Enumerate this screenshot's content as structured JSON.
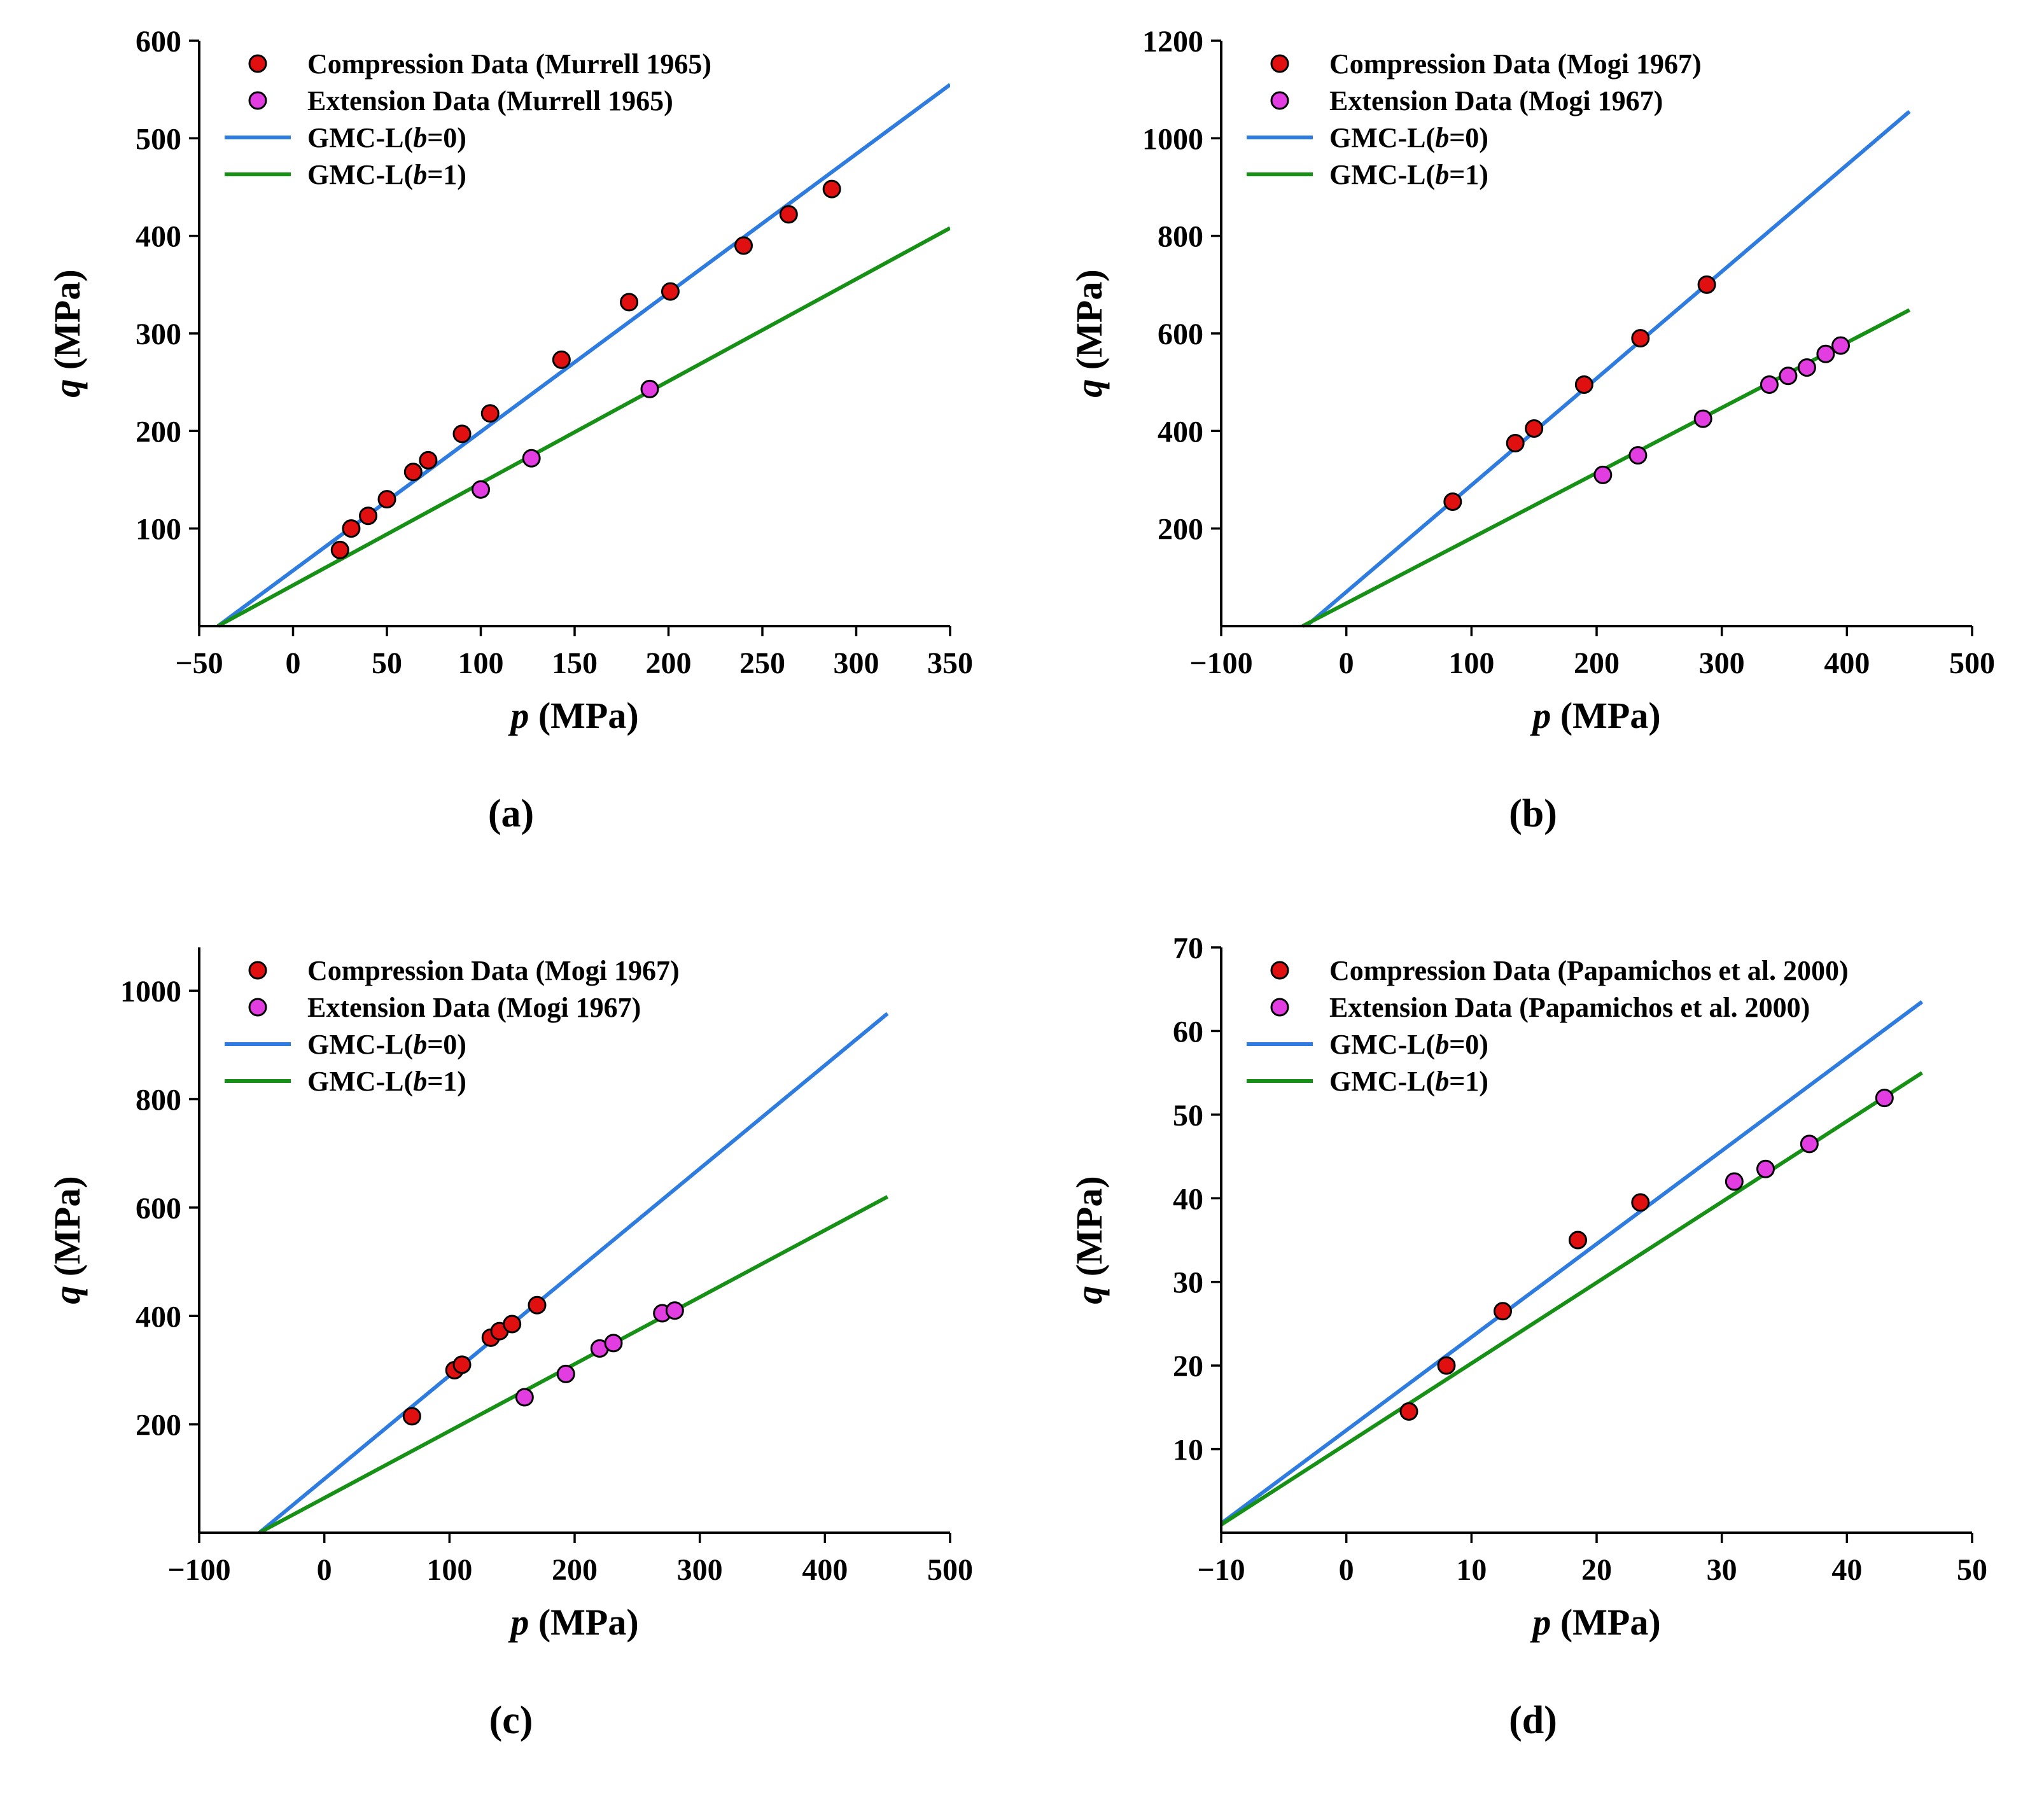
{
  "figure": {
    "background": "#ffffff",
    "axis_color": "#000000"
  },
  "chart_data": [
    {
      "id": "a",
      "type": "scatter",
      "caption": "(a)",
      "xlabel": {
        "var": "p",
        "unit": "(MPa)"
      },
      "ylabel": {
        "var": "q",
        "unit": "(MPa)"
      },
      "xlim": [
        -50,
        350
      ],
      "ylim": [
        0,
        600
      ],
      "xticks": [
        -50,
        0,
        50,
        100,
        150,
        200,
        250,
        300,
        350
      ],
      "yticks": [
        100,
        200,
        300,
        400,
        500,
        600
      ],
      "legend_position": "top-left",
      "grid": false,
      "scatter": [
        {
          "name": "Compression Data (Murrell 1965)",
          "color": "#e01010",
          "points": [
            [
              25,
              78
            ],
            [
              31,
              100
            ],
            [
              40,
              113
            ],
            [
              50,
              130
            ],
            [
              64,
              158
            ],
            [
              72,
              170
            ],
            [
              90,
              197
            ],
            [
              105,
              218
            ],
            [
              143,
              273
            ],
            [
              179,
              332
            ],
            [
              201,
              343
            ],
            [
              240,
              390
            ],
            [
              264,
              422
            ],
            [
              287,
              448
            ]
          ]
        },
        {
          "name": "Extension Data (Murrell 1965)",
          "color": "#e13de1",
          "points": [
            [
              100,
              140
            ],
            [
              127,
              172
            ],
            [
              190,
              243
            ]
          ]
        }
      ],
      "lines": [
        {
          "name": "GMC-L(b=0)",
          "color": "#2f7ce0",
          "points": [
            [
              -40,
              0
            ],
            [
              350,
              555
            ]
          ]
        },
        {
          "name": "GMC-L(b=1)",
          "color": "#169116",
          "points": [
            [
              -40,
              0
            ],
            [
              350,
              408
            ]
          ]
        }
      ]
    },
    {
      "id": "b",
      "type": "scatter",
      "caption": "(b)",
      "xlabel": {
        "var": "p",
        "unit": "(MPa)"
      },
      "ylabel": {
        "var": "q",
        "unit": "(MPa)"
      },
      "xlim": [
        -100,
        500
      ],
      "ylim": [
        0,
        1200
      ],
      "xticks": [
        -100,
        0,
        100,
        200,
        300,
        400,
        500
      ],
      "yticks": [
        200,
        400,
        600,
        800,
        1000,
        1200
      ],
      "legend_position": "top-left",
      "grid": false,
      "scatter": [
        {
          "name": "Compression Data (Mogi 1967)",
          "color": "#e01010",
          "points": [
            [
              85,
              255
            ],
            [
              135,
              375
            ],
            [
              150,
              405
            ],
            [
              190,
              495
            ],
            [
              235,
              590
            ],
            [
              288,
              700
            ]
          ]
        },
        {
          "name": "Extension Data (Mogi 1967)",
          "color": "#e13de1",
          "points": [
            [
              205,
              310
            ],
            [
              233,
              350
            ],
            [
              285,
              425
            ],
            [
              338,
              495
            ],
            [
              353,
              513
            ],
            [
              368,
              530
            ],
            [
              383,
              558
            ],
            [
              395,
              575
            ]
          ]
        }
      ],
      "lines": [
        {
          "name": "GMC-L(b=0)",
          "color": "#2f7ce0",
          "points": [
            [
              -32,
              0
            ],
            [
              450,
              1055
            ]
          ]
        },
        {
          "name": "GMC-L(b=1)",
          "color": "#169116",
          "points": [
            [
              -35,
              0
            ],
            [
              450,
              648
            ]
          ]
        }
      ]
    },
    {
      "id": "c",
      "type": "scatter",
      "caption": "(c)",
      "xlabel": {
        "var": "p",
        "unit": "(MPa)"
      },
      "ylabel": {
        "var": "q",
        "unit": "(MPa)"
      },
      "xlim": [
        -100,
        500
      ],
      "ylim": [
        0,
        1080
      ],
      "xticks": [
        -100,
        0,
        100,
        200,
        300,
        400,
        500
      ],
      "yticks": [
        200,
        400,
        600,
        800,
        1000
      ],
      "legend_position": "top-left",
      "grid": false,
      "scatter": [
        {
          "name": "Compression Data (Mogi 1967)",
          "color": "#e01010",
          "points": [
            [
              70,
              215
            ],
            [
              104,
              300
            ],
            [
              110,
              310
            ],
            [
              133,
              360
            ],
            [
              140,
              372
            ],
            [
              150,
              385
            ],
            [
              170,
              420
            ]
          ]
        },
        {
          "name": "Extension Data (Mogi 1967)",
          "color": "#e13de1",
          "points": [
            [
              160,
              250
            ],
            [
              193,
              293
            ],
            [
              220,
              340
            ],
            [
              231,
              350
            ],
            [
              270,
              405
            ],
            [
              280,
              410
            ]
          ]
        }
      ],
      "lines": [
        {
          "name": "GMC-L(b=0)",
          "color": "#2f7ce0",
          "points": [
            [
              -52,
              0
            ],
            [
              450,
              958
            ]
          ]
        },
        {
          "name": "GMC-L(b=1)",
          "color": "#169116",
          "points": [
            [
              -52,
              0
            ],
            [
              450,
              620
            ]
          ]
        }
      ]
    },
    {
      "id": "d",
      "type": "scatter",
      "caption": "(d)",
      "xlabel": {
        "var": "p",
        "unit": "(MPa)"
      },
      "ylabel": {
        "var": "q",
        "unit": "(MPa)"
      },
      "xlim": [
        -10,
        50
      ],
      "ylim": [
        0,
        70
      ],
      "xticks": [
        -10,
        0,
        10,
        20,
        30,
        40,
        50
      ],
      "yticks": [
        10,
        20,
        30,
        40,
        50,
        60,
        70
      ],
      "legend_position": "top-left",
      "grid": false,
      "scatter": [
        {
          "name": "Compression Data (Papamichos et al. 2000)",
          "color": "#e01010",
          "points": [
            [
              5,
              14.5
            ],
            [
              8,
              20
            ],
            [
              12.5,
              26.5
            ],
            [
              18.5,
              35
            ],
            [
              23.5,
              39.5
            ]
          ]
        },
        {
          "name": "Extension Data (Papamichos et al. 2000)",
          "color": "#e13de1",
          "points": [
            [
              31,
              42
            ],
            [
              33.5,
              43.5
            ],
            [
              37,
              46.5
            ],
            [
              43,
              52
            ]
          ]
        }
      ],
      "lines": [
        {
          "name": "GMC-L(b=0)",
          "color": "#2f7ce0",
          "points": [
            [
              -11,
              0
            ],
            [
              46,
              63.5
            ]
          ]
        },
        {
          "name": "GMC-L(b=1)",
          "color": "#169116",
          "points": [
            [
              -11,
              0
            ],
            [
              46,
              55
            ]
          ]
        }
      ]
    }
  ]
}
